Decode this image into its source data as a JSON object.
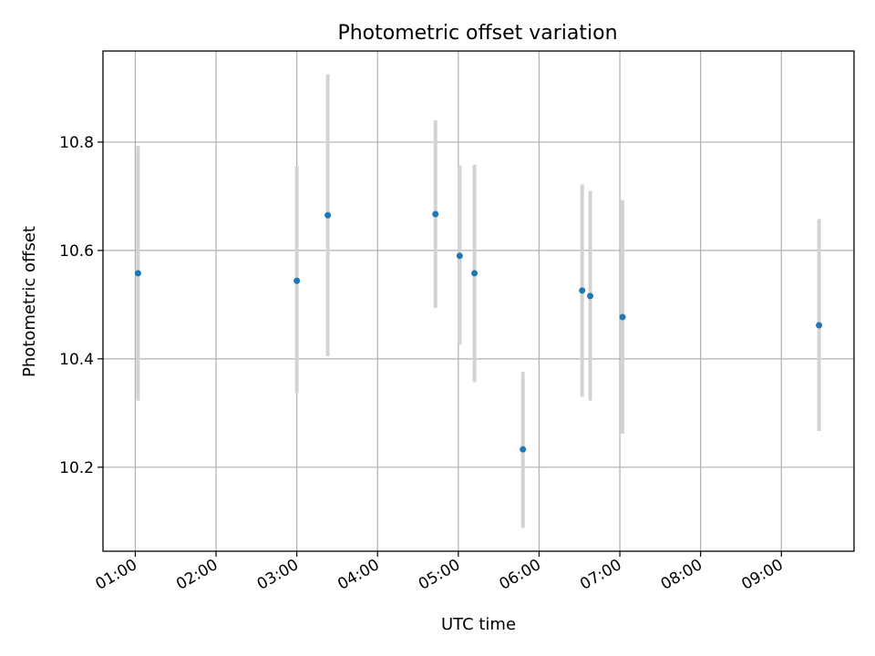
{
  "chart_data": {
    "type": "scatter",
    "title": "Photometric offset variation",
    "xlabel": "UTC time",
    "ylabel": "Photometric offset",
    "x_unit": "hours UTC",
    "xlim": [
      "00:36",
      "09:54"
    ],
    "ylim": [
      10.045,
      10.968
    ],
    "x_ticks": [
      {
        "value": "01:00",
        "label": "01:00"
      },
      {
        "value": "02:00",
        "label": "02:00"
      },
      {
        "value": "03:00",
        "label": "03:00"
      },
      {
        "value": "04:00",
        "label": "04:00"
      },
      {
        "value": "05:00",
        "label": "05:00"
      },
      {
        "value": "06:00",
        "label": "06:00"
      },
      {
        "value": "07:00",
        "label": "07:00"
      },
      {
        "value": "08:00",
        "label": "08:00"
      },
      {
        "value": "09:00",
        "label": "09:00"
      }
    ],
    "y_ticks": [
      {
        "value": 10.2,
        "label": "10.2"
      },
      {
        "value": 10.4,
        "label": "10.4"
      },
      {
        "value": 10.6,
        "label": "10.6"
      },
      {
        "value": 10.8,
        "label": "10.8"
      }
    ],
    "grid": true,
    "colors": {
      "point": "#1f77b4",
      "errorbar": "#d3d3d3",
      "grid": "#b0b0b0"
    },
    "series": [
      {
        "points": [
          {
            "x": "01:02",
            "y": 10.558,
            "ylow": 10.323,
            "yhigh": 10.793
          },
          {
            "x": "03:00",
            "y": 10.544,
            "ylow": 10.337,
            "yhigh": 10.756
          },
          {
            "x": "03:23",
            "y": 10.665,
            "ylow": 10.405,
            "yhigh": 10.925
          },
          {
            "x": "04:43",
            "y": 10.667,
            "ylow": 10.494,
            "yhigh": 10.84
          },
          {
            "x": "05:01",
            "y": 10.59,
            "ylow": 10.426,
            "yhigh": 10.757
          },
          {
            "x": "05:12",
            "y": 10.558,
            "ylow": 10.357,
            "yhigh": 10.758
          },
          {
            "x": "05:48",
            "y": 10.233,
            "ylow": 10.088,
            "yhigh": 10.376
          },
          {
            "x": "06:32",
            "y": 10.526,
            "ylow": 10.33,
            "yhigh": 10.722
          },
          {
            "x": "06:38",
            "y": 10.516,
            "ylow": 10.323,
            "yhigh": 10.71
          },
          {
            "x": "07:02",
            "y": 10.477,
            "ylow": 10.262,
            "yhigh": 10.693
          },
          {
            "x": "09:28",
            "y": 10.462,
            "ylow": 10.267,
            "yhigh": 10.658
          }
        ]
      }
    ]
  }
}
